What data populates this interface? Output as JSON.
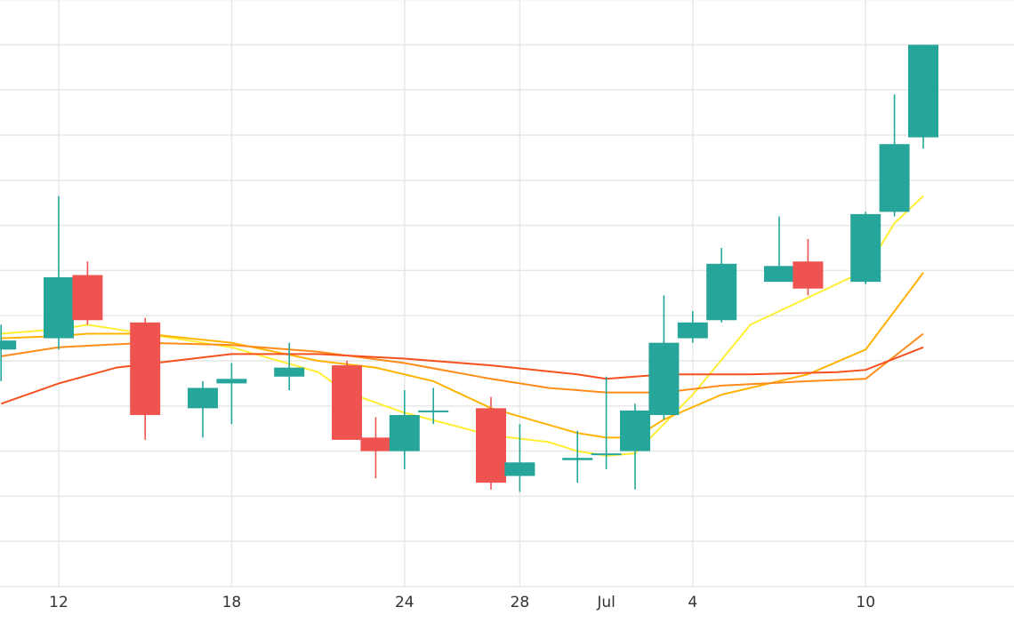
{
  "chart_data": {
    "type": "candlestick",
    "title": "",
    "xlabel": "",
    "ylabel": "",
    "grid": true,
    "x_axis": {
      "type": "date",
      "ticks": [
        {
          "date": "2023-06-12",
          "label": "12"
        },
        {
          "date": "2023-06-18",
          "label": "18"
        },
        {
          "date": "2023-06-24",
          "label": "24"
        },
        {
          "date": "2023-06-28",
          "label": "28"
        },
        {
          "date": "2023-07-01",
          "label": "Jul"
        },
        {
          "date": "2023-07-04",
          "label": "4"
        },
        {
          "date": "2023-07-10",
          "label": "10"
        }
      ],
      "range": [
        "2023-06-10",
        "2023-07-12"
      ]
    },
    "y_axis": {
      "range": [
        0,
        13
      ],
      "gridlines": [
        1,
        2,
        3,
        4,
        5,
        6,
        7,
        8,
        9,
        10,
        11,
        12,
        13
      ],
      "tick_labels_visible": false
    },
    "colors": {
      "up": "#26a69a",
      "down": "#ef5350"
    },
    "candles": [
      {
        "date": "2023-06-10",
        "open": 5.25,
        "high": 5.8,
        "low": 4.55,
        "close": 5.45
      },
      {
        "date": "2023-06-12",
        "open": 5.5,
        "high": 8.65,
        "low": 5.25,
        "close": 6.85
      },
      {
        "date": "2023-06-13",
        "open": 6.9,
        "high": 7.2,
        "low": 5.8,
        "close": 5.9
      },
      {
        "date": "2023-06-15",
        "open": 5.85,
        "high": 5.95,
        "low": 3.25,
        "close": 3.8
      },
      {
        "date": "2023-06-17",
        "open": 3.95,
        "high": 4.55,
        "low": 3.3,
        "close": 4.4
      },
      {
        "date": "2023-06-18",
        "open": 4.5,
        "high": 4.95,
        "low": 3.6,
        "close": 4.6
      },
      {
        "date": "2023-06-20",
        "open": 4.65,
        "high": 5.4,
        "low": 4.35,
        "close": 4.85
      },
      {
        "date": "2023-06-22",
        "open": 4.9,
        "high": 5.0,
        "low": 3.25,
        "close": 3.25
      },
      {
        "date": "2023-06-23",
        "open": 3.3,
        "high": 3.75,
        "low": 2.4,
        "close": 3.0
      },
      {
        "date": "2023-06-24",
        "open": 3.0,
        "high": 4.35,
        "low": 2.6,
        "close": 3.8
      },
      {
        "date": "2023-06-25",
        "open": 3.9,
        "high": 4.4,
        "low": 3.6,
        "close": 3.9
      },
      {
        "date": "2023-06-27",
        "open": 3.95,
        "high": 4.2,
        "low": 2.15,
        "close": 2.3
      },
      {
        "date": "2023-06-28",
        "open": 2.45,
        "high": 3.6,
        "low": 2.1,
        "close": 2.75
      },
      {
        "date": "2023-06-30",
        "open": 2.8,
        "high": 3.45,
        "low": 2.3,
        "close": 2.85
      },
      {
        "date": "2023-07-01",
        "open": 2.95,
        "high": 4.65,
        "low": 2.6,
        "close": 2.95
      },
      {
        "date": "2023-07-02",
        "open": 3.0,
        "high": 4.05,
        "low": 2.15,
        "close": 3.9
      },
      {
        "date": "2023-07-03",
        "open": 3.8,
        "high": 6.45,
        "low": 3.7,
        "close": 5.4
      },
      {
        "date": "2023-07-04",
        "open": 5.5,
        "high": 6.1,
        "low": 5.4,
        "close": 5.85
      },
      {
        "date": "2023-07-05",
        "open": 5.9,
        "high": 7.5,
        "low": 5.85,
        "close": 7.15
      },
      {
        "date": "2023-07-07",
        "open": 6.75,
        "high": 8.2,
        "low": 6.75,
        "close": 7.1
      },
      {
        "date": "2023-07-08",
        "open": 7.2,
        "high": 7.7,
        "low": 6.45,
        "close": 6.6
      },
      {
        "date": "2023-07-10",
        "open": 6.75,
        "high": 8.3,
        "low": 6.7,
        "close": 8.25
      },
      {
        "date": "2023-07-11",
        "open": 8.3,
        "high": 10.9,
        "low": 8.2,
        "close": 9.8
      },
      {
        "date": "2023-07-12",
        "open": 9.95,
        "high": 12.0,
        "low": 9.7,
        "close": 12.0
      }
    ],
    "moving_averages": [
      {
        "color": "#ffee33",
        "points": [
          {
            "date": "2023-06-10",
            "value": 5.6
          },
          {
            "date": "2023-06-12",
            "value": 5.7
          },
          {
            "date": "2023-06-13",
            "value": 5.8
          },
          {
            "date": "2023-06-15",
            "value": 5.6
          },
          {
            "date": "2023-06-18",
            "value": 5.3
          },
          {
            "date": "2023-06-21",
            "value": 4.75
          },
          {
            "date": "2023-06-22",
            "value": 4.3
          },
          {
            "date": "2023-06-24",
            "value": 3.85
          },
          {
            "date": "2023-06-27",
            "value": 3.35
          },
          {
            "date": "2023-06-29",
            "value": 3.2
          },
          {
            "date": "2023-06-30",
            "value": 3.0
          },
          {
            "date": "2023-07-01",
            "value": 2.9
          },
          {
            "date": "2023-07-02",
            "value": 2.95
          },
          {
            "date": "2023-07-04",
            "value": 4.25
          },
          {
            "date": "2023-07-06",
            "value": 5.8
          },
          {
            "date": "2023-07-08",
            "value": 6.4
          },
          {
            "date": "2023-07-10",
            "value": 7.0
          },
          {
            "date": "2023-07-11",
            "value": 8.05
          },
          {
            "date": "2023-07-12",
            "value": 8.65
          }
        ]
      },
      {
        "color": "#ffb300",
        "points": [
          {
            "date": "2023-06-10",
            "value": 5.5
          },
          {
            "date": "2023-06-12",
            "value": 5.55
          },
          {
            "date": "2023-06-13",
            "value": 5.6
          },
          {
            "date": "2023-06-15",
            "value": 5.6
          },
          {
            "date": "2023-06-18",
            "value": 5.4
          },
          {
            "date": "2023-06-21",
            "value": 5.0
          },
          {
            "date": "2023-06-23",
            "value": 4.85
          },
          {
            "date": "2023-06-25",
            "value": 4.55
          },
          {
            "date": "2023-06-27",
            "value": 3.95
          },
          {
            "date": "2023-06-30",
            "value": 3.4
          },
          {
            "date": "2023-07-01",
            "value": 3.3
          },
          {
            "date": "2023-07-02",
            "value": 3.3
          },
          {
            "date": "2023-07-03",
            "value": 3.7
          },
          {
            "date": "2023-07-05",
            "value": 4.25
          },
          {
            "date": "2023-07-08",
            "value": 4.7
          },
          {
            "date": "2023-07-10",
            "value": 5.25
          },
          {
            "date": "2023-07-12",
            "value": 6.95
          }
        ]
      },
      {
        "color": "#ff8c1a",
        "points": [
          {
            "date": "2023-06-10",
            "value": 5.1
          },
          {
            "date": "2023-06-12",
            "value": 5.3
          },
          {
            "date": "2023-06-15",
            "value": 5.4
          },
          {
            "date": "2023-06-18",
            "value": 5.35
          },
          {
            "date": "2023-06-21",
            "value": 5.2
          },
          {
            "date": "2023-06-24",
            "value": 4.95
          },
          {
            "date": "2023-06-27",
            "value": 4.6
          },
          {
            "date": "2023-06-29",
            "value": 4.4
          },
          {
            "date": "2023-07-01",
            "value": 4.3
          },
          {
            "date": "2023-07-03",
            "value": 4.3
          },
          {
            "date": "2023-07-05",
            "value": 4.45
          },
          {
            "date": "2023-07-08",
            "value": 4.55
          },
          {
            "date": "2023-07-10",
            "value": 4.6
          },
          {
            "date": "2023-07-12",
            "value": 5.6
          }
        ]
      },
      {
        "color": "#f4511e",
        "points": [
          {
            "date": "2023-06-10",
            "value": 4.05
          },
          {
            "date": "2023-06-12",
            "value": 4.5
          },
          {
            "date": "2023-06-14",
            "value": 4.85
          },
          {
            "date": "2023-06-16",
            "value": 5.0
          },
          {
            "date": "2023-06-18",
            "value": 5.15
          },
          {
            "date": "2023-06-21",
            "value": 5.15
          },
          {
            "date": "2023-06-24",
            "value": 5.05
          },
          {
            "date": "2023-06-27",
            "value": 4.9
          },
          {
            "date": "2023-06-30",
            "value": 4.7
          },
          {
            "date": "2023-07-01",
            "value": 4.6
          },
          {
            "date": "2023-07-03",
            "value": 4.7
          },
          {
            "date": "2023-07-06",
            "value": 4.7
          },
          {
            "date": "2023-07-09",
            "value": 4.75
          },
          {
            "date": "2023-07-10",
            "value": 4.8
          },
          {
            "date": "2023-07-12",
            "value": 5.3
          }
        ]
      }
    ]
  }
}
